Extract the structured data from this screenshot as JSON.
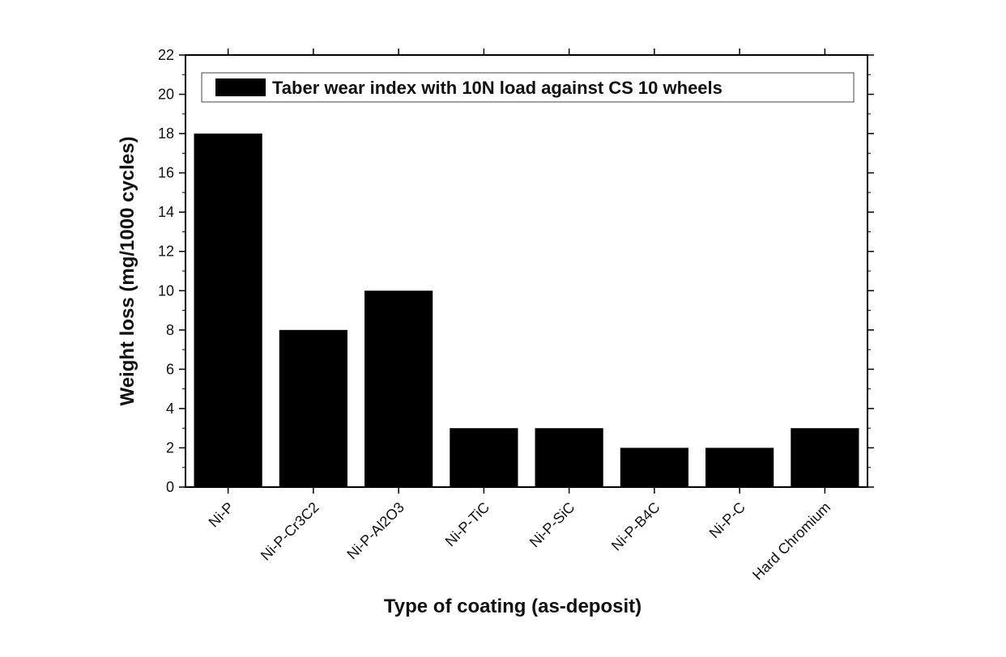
{
  "chart_data": {
    "type": "bar",
    "title": "",
    "xlabel": "Type of coating (as-deposit)",
    "ylabel": "Weight loss (mg/1000 cycles)",
    "categories": [
      "Ni-P",
      "Ni-P-Cr3C2",
      "Ni-P-Al2O3",
      "Ni-P-TiC",
      "Ni-P-SiC",
      "Ni-P-B4C",
      "Ni-P-C",
      "Hard Chromium"
    ],
    "series": [
      {
        "name": "Taber wear index with 10N load against CS 10 wheels",
        "values": [
          18,
          8,
          10,
          3,
          3,
          2,
          2,
          3
        ]
      }
    ],
    "ylim": [
      0,
      22
    ],
    "yticks": [
      0,
      2,
      4,
      6,
      8,
      10,
      12,
      14,
      16,
      18,
      20,
      22
    ],
    "grid": false,
    "legend_position": "top",
    "bar_color": "#000000"
  }
}
